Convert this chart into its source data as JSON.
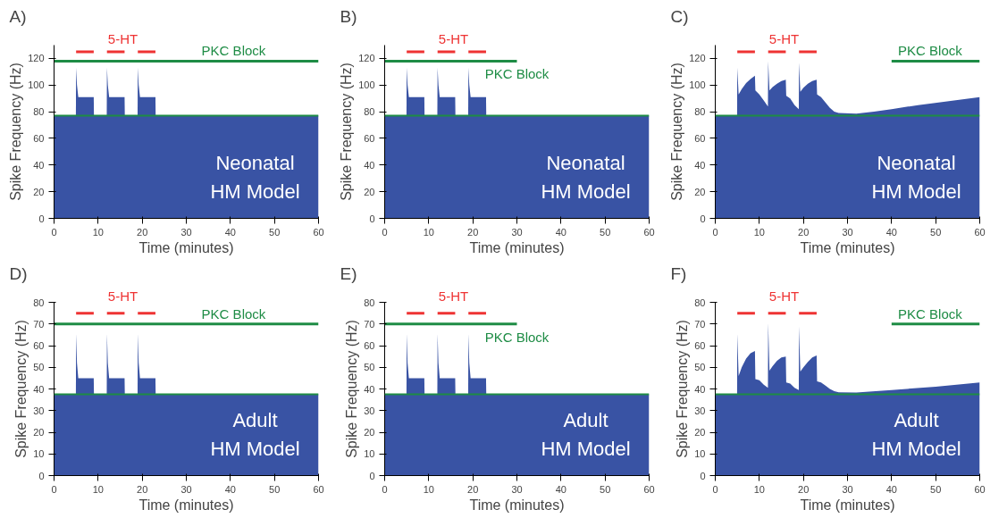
{
  "chart_data": [
    {
      "type": "area",
      "title": "A)",
      "xlabel": "Time (minutes)",
      "ylabel": "Spike Frequency (Hz)",
      "xlim": [
        0,
        60
      ],
      "ylim": [
        0,
        130
      ],
      "xticks": [
        0,
        10,
        20,
        30,
        40,
        50,
        60
      ],
      "yticks": [
        0,
        20,
        40,
        60,
        80,
        100,
        120
      ],
      "grid": false,
      "series": [
        {
          "color": "#3953a4",
          "x": [
            0,
            4.95,
            5,
            5.2,
            5.5,
            9,
            9.05,
            11.95,
            12,
            12.2,
            12.5,
            16,
            16.05,
            18.95,
            19,
            19.2,
            19.5,
            23,
            23.05,
            60
          ],
          "values": [
            77,
            77,
            113,
            100,
            91,
            91,
            77,
            77,
            113,
            100,
            91,
            91,
            77,
            77,
            113,
            100,
            91,
            91,
            77,
            77
          ]
        },
        {
          "type": "line",
          "name": "5-HT",
          "color": "#ee3333",
          "x": [
            5,
            9,
            10.5,
            12,
            16,
            17.5,
            19,
            23
          ],
          "values": [
            125,
            125,
            null,
            125,
            125,
            null,
            125,
            125
          ]
        },
        {
          "type": "line",
          "name": "PKC Block",
          "color": "#1e8c45",
          "x": [
            0,
            60
          ],
          "values": [
            118,
            118
          ]
        }
      ],
      "ref_lines": [
        {
          "axis": "y",
          "value": 77,
          "color": "#1e8c45"
        }
      ],
      "annotations": [
        "Neonatal",
        "HM Model"
      ]
    },
    {
      "type": "area",
      "title": "B)",
      "xlabel": "Time (minutes)",
      "ylabel": "Spike Frequency (Hz)",
      "xlim": [
        0,
        60
      ],
      "ylim": [
        0,
        130
      ],
      "xticks": [
        0,
        10,
        20,
        30,
        40,
        50,
        60
      ],
      "yticks": [
        0,
        20,
        40,
        60,
        80,
        100,
        120
      ],
      "grid": false,
      "series": [
        {
          "color": "#3953a4",
          "x": [
            0,
            4.95,
            5,
            5.2,
            5.5,
            9,
            9.05,
            11.95,
            12,
            12.2,
            12.5,
            16,
            16.05,
            18.95,
            19,
            19.2,
            19.5,
            23,
            23.05,
            60
          ],
          "values": [
            77,
            77,
            113,
            100,
            91,
            91,
            77,
            77,
            113,
            100,
            91,
            91,
            77,
            77,
            113,
            100,
            91,
            91,
            77,
            77
          ]
        },
        {
          "type": "line",
          "name": "5-HT",
          "color": "#ee3333",
          "x": [
            5,
            9,
            10.5,
            12,
            16,
            17.5,
            19,
            23
          ],
          "values": [
            125,
            125,
            null,
            125,
            125,
            null,
            125,
            125
          ]
        },
        {
          "type": "line",
          "name": "PKC Block",
          "color": "#1e8c45",
          "x": [
            0,
            30
          ],
          "values": [
            118,
            118
          ]
        }
      ],
      "ref_lines": [
        {
          "axis": "y",
          "value": 77,
          "color": "#1e8c45"
        }
      ],
      "annotations": [
        "Neonatal",
        "HM Model"
      ]
    },
    {
      "type": "area",
      "title": "C)",
      "xlabel": "Time (minutes)",
      "ylabel": "Spike Frequency (Hz)",
      "xlim": [
        0,
        60
      ],
      "ylim": [
        0,
        130
      ],
      "xticks": [
        0,
        10,
        20,
        30,
        40,
        50,
        60
      ],
      "yticks": [
        0,
        20,
        40,
        60,
        80,
        100,
        120
      ],
      "grid": false,
      "series": [
        {
          "color": "#3953a4",
          "x": [
            0,
            4.95,
            5,
            5.3,
            6,
            7,
            8,
            9,
            9.1,
            10,
            11,
            11.95,
            12,
            12.3,
            13,
            14,
            15,
            16,
            16.1,
            17,
            18,
            18.95,
            19,
            19.3,
            20,
            21,
            22,
            23,
            23.1,
            24,
            25,
            26,
            27,
            28,
            32,
            36,
            40,
            46,
            53,
            60
          ],
          "values": [
            77,
            77,
            113,
            93,
            97,
            101.5,
            104.5,
            107,
            96,
            93,
            88.5,
            84,
            118,
            96,
            98.5,
            101,
            103,
            104,
            92,
            90,
            85,
            82,
            117,
            95,
            98,
            101,
            103,
            104,
            93,
            91,
            87,
            83,
            80,
            79,
            78.5,
            80,
            82,
            85,
            88,
            91
          ]
        },
        {
          "type": "line",
          "name": "5-HT",
          "color": "#ee3333",
          "x": [
            5,
            9,
            10.5,
            12,
            16,
            17.5,
            19,
            23
          ],
          "values": [
            125,
            125,
            null,
            125,
            125,
            null,
            125,
            125
          ]
        },
        {
          "type": "line",
          "name": "PKC Block",
          "color": "#1e8c45",
          "x": [
            40,
            60
          ],
          "values": [
            118,
            118
          ]
        }
      ],
      "ref_lines": [
        {
          "axis": "y",
          "value": 77,
          "color": "#1e8c45"
        }
      ],
      "annotations": [
        "Neonatal",
        "HM Model"
      ]
    },
    {
      "type": "area",
      "title": "D)",
      "xlabel": "Time (minutes)",
      "ylabel": "Spike Frequency (Hz)",
      "xlim": [
        0,
        60
      ],
      "ylim": [
        0,
        80
      ],
      "xticks": [
        0,
        10,
        20,
        30,
        40,
        50,
        60
      ],
      "yticks": [
        0,
        10,
        20,
        30,
        40,
        50,
        60,
        70,
        80
      ],
      "grid": false,
      "series": [
        {
          "color": "#3953a4",
          "x": [
            0,
            4.95,
            5,
            5.2,
            5.5,
            9,
            9.05,
            11.95,
            12,
            12.2,
            12.5,
            16,
            16.05,
            18.95,
            19,
            19.2,
            19.5,
            23,
            23.05,
            60
          ],
          "values": [
            37.5,
            37.5,
            65.5,
            52,
            45,
            45,
            37.5,
            37.5,
            65.5,
            52,
            45,
            45,
            37.5,
            37.5,
            65.5,
            52,
            45,
            45,
            37.5,
            37.5
          ]
        },
        {
          "type": "line",
          "name": "5-HT",
          "color": "#ee3333",
          "x": [
            5,
            9,
            10.5,
            12,
            16,
            17.5,
            19,
            23
          ],
          "values": [
            75,
            75,
            null,
            75,
            75,
            null,
            75,
            75
          ]
        },
        {
          "type": "line",
          "name": "PKC Block",
          "color": "#1e8c45",
          "x": [
            0,
            60
          ],
          "values": [
            70,
            70
          ]
        }
      ],
      "ref_lines": [
        {
          "axis": "y",
          "value": 37.5,
          "color": "#1e8c45"
        }
      ],
      "annotations": [
        "Adult",
        "HM Model"
      ]
    },
    {
      "type": "area",
      "title": "E)",
      "xlabel": "Time (minutes)",
      "ylabel": "Spike Frequency (Hz)",
      "xlim": [
        0,
        60
      ],
      "ylim": [
        0,
        80
      ],
      "xticks": [
        0,
        10,
        20,
        30,
        40,
        50,
        60
      ],
      "yticks": [
        0,
        10,
        20,
        30,
        40,
        50,
        60,
        70,
        80
      ],
      "grid": false,
      "series": [
        {
          "color": "#3953a4",
          "x": [
            0,
            4.95,
            5,
            5.2,
            5.5,
            9,
            9.05,
            11.95,
            12,
            12.2,
            12.5,
            16,
            16.05,
            18.95,
            19,
            19.2,
            19.5,
            23,
            23.05,
            60
          ],
          "values": [
            37.5,
            37.5,
            65.5,
            52,
            45,
            45,
            37.5,
            37.5,
            65.5,
            52,
            45,
            45,
            37.5,
            37.5,
            65.5,
            52,
            45,
            45,
            37.5,
            37.5
          ]
        },
        {
          "type": "line",
          "name": "5-HT",
          "color": "#ee3333",
          "x": [
            5,
            9,
            10.5,
            12,
            16,
            17.5,
            19,
            23
          ],
          "values": [
            75,
            75,
            null,
            75,
            75,
            null,
            75,
            75
          ]
        },
        {
          "type": "line",
          "name": "PKC Block",
          "color": "#1e8c45",
          "x": [
            0,
            30
          ],
          "values": [
            70,
            70
          ]
        }
      ],
      "ref_lines": [
        {
          "axis": "y",
          "value": 37.5,
          "color": "#1e8c45"
        }
      ],
      "annotations": [
        "Adult",
        "HM Model"
      ]
    },
    {
      "type": "area",
      "title": "F)",
      "xlabel": "Time (minutes)",
      "ylabel": "Spike Frequency (Hz)",
      "xlim": [
        0,
        60
      ],
      "ylim": [
        0,
        80
      ],
      "xticks": [
        0,
        10,
        20,
        30,
        40,
        50,
        60
      ],
      "yticks": [
        0,
        10,
        20,
        30,
        40,
        50,
        60,
        70,
        80
      ],
      "grid": false,
      "series": [
        {
          "color": "#3953a4",
          "x": [
            0,
            4.95,
            5,
            5.3,
            6,
            7,
            8,
            9,
            9.1,
            10,
            11,
            11.95,
            12,
            12.3,
            13,
            14,
            15,
            16,
            16.1,
            17,
            18,
            18.95,
            19,
            19.3,
            20,
            21,
            22,
            23,
            23.1,
            24,
            25,
            26,
            27,
            28,
            32,
            40,
            50,
            60
          ],
          "values": [
            37.5,
            37.5,
            65.5,
            46,
            50,
            54,
            56.5,
            57.5,
            44.5,
            44,
            42,
            40.5,
            70.5,
            48.5,
            50.5,
            53,
            54.5,
            55,
            43,
            42.5,
            40.5,
            39.5,
            69,
            48,
            50,
            52.5,
            54.5,
            55.5,
            43.5,
            43,
            41.5,
            40,
            39,
            38.5,
            38.3,
            39.5,
            41,
            43
          ]
        },
        {
          "type": "line",
          "name": "5-HT",
          "color": "#ee3333",
          "x": [
            5,
            9,
            10.5,
            12,
            16,
            17.5,
            19,
            23
          ],
          "values": [
            75,
            75,
            null,
            75,
            75,
            null,
            75,
            75
          ]
        },
        {
          "type": "line",
          "name": "PKC Block",
          "color": "#1e8c45",
          "x": [
            40,
            60
          ],
          "values": [
            70,
            70
          ]
        }
      ],
      "ref_lines": [
        {
          "axis": "y",
          "value": 37.5,
          "color": "#1e8c45"
        }
      ],
      "annotations": [
        "Adult",
        "HM Model"
      ]
    }
  ]
}
